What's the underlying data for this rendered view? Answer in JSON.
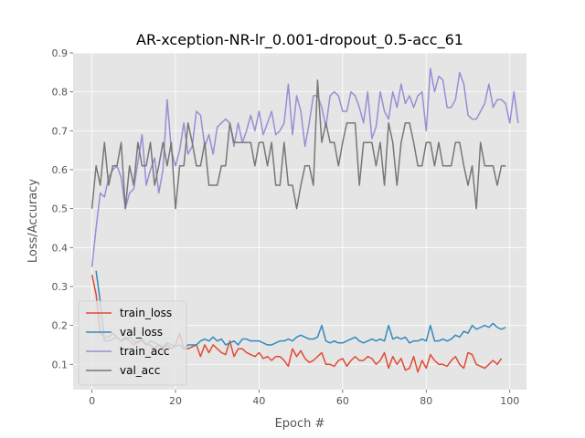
{
  "chart_data": {
    "type": "line",
    "title": "AR-xception-NR-lr_0.001-dropout_0.5-acc_61",
    "xlabel": "Epoch #",
    "ylabel": "Loss/Accuracy",
    "xlim": [
      -4.5,
      104
    ],
    "ylim": [
      0.035,
      0.9
    ],
    "xticks": [
      0,
      20,
      40,
      60,
      80,
      100
    ],
    "yticks": [
      0.1,
      0.2,
      0.3,
      0.4,
      0.5,
      0.6,
      0.7,
      0.8,
      0.9
    ],
    "xtick_labels": [
      "0",
      "20",
      "40",
      "60",
      "80",
      "100"
    ],
    "ytick_labels": [
      "0.1",
      "0.2",
      "0.3",
      "0.4",
      "0.5",
      "0.6",
      "0.7",
      "0.8",
      "0.9"
    ],
    "grid": true,
    "background": "#E5E5E5",
    "legend_position": "lower-left",
    "series": [
      {
        "name": "train_loss",
        "color": "#E24A33",
        "values": [
          0.33,
          0.28,
          0.18,
          0.17,
          0.17,
          0.18,
          0.17,
          0.16,
          0.17,
          0.16,
          0.15,
          0.16,
          0.16,
          0.15,
          0.15,
          0.14,
          0.15,
          0.14,
          0.15,
          0.14,
          0.15,
          0.18,
          0.14,
          0.14,
          0.145,
          0.15,
          0.12,
          0.15,
          0.13,
          0.15,
          0.14,
          0.13,
          0.125,
          0.16,
          0.12,
          0.14,
          0.14,
          0.13,
          0.125,
          0.12,
          0.13,
          0.115,
          0.12,
          0.11,
          0.12,
          0.12,
          0.11,
          0.095,
          0.14,
          0.12,
          0.135,
          0.115,
          0.105,
          0.11,
          0.12,
          0.13,
          0.1,
          0.1,
          0.095,
          0.11,
          0.115,
          0.095,
          0.11,
          0.12,
          0.11,
          0.11,
          0.12,
          0.115,
          0.1,
          0.11,
          0.13,
          0.09,
          0.12,
          0.1,
          0.115,
          0.085,
          0.09,
          0.12,
          0.08,
          0.11,
          0.09,
          0.125,
          0.11,
          0.1,
          0.1,
          0.095,
          0.11,
          0.12,
          0.1,
          0.09,
          0.13,
          0.125,
          0.1,
          0.095,
          0.09,
          0.1,
          0.11,
          0.1,
          0.115
        ],
        "x_start": 0
      },
      {
        "name": "val_loss",
        "color": "#348ABD",
        "values": [
          0.34,
          0.26,
          0.16,
          0.16,
          0.165,
          0.17,
          0.16,
          0.165,
          0.17,
          0.16,
          0.155,
          0.165,
          0.15,
          0.16,
          0.155,
          0.15,
          0.145,
          0.155,
          0.15,
          0.145,
          0.15,
          0.14,
          0.15,
          0.15,
          0.15,
          0.16,
          0.165,
          0.16,
          0.17,
          0.16,
          0.165,
          0.15,
          0.155,
          0.16,
          0.15,
          0.165,
          0.165,
          0.16,
          0.16,
          0.16,
          0.155,
          0.15,
          0.15,
          0.155,
          0.16,
          0.16,
          0.165,
          0.16,
          0.17,
          0.175,
          0.17,
          0.165,
          0.165,
          0.17,
          0.2,
          0.16,
          0.155,
          0.16,
          0.155,
          0.155,
          0.16,
          0.165,
          0.17,
          0.16,
          0.155,
          0.16,
          0.165,
          0.16,
          0.165,
          0.16,
          0.2,
          0.165,
          0.17,
          0.165,
          0.17,
          0.155,
          0.16,
          0.16,
          0.165,
          0.16,
          0.2,
          0.16,
          0.16,
          0.165,
          0.16,
          0.165,
          0.175,
          0.17,
          0.185,
          0.18,
          0.2,
          0.19,
          0.195,
          0.2,
          0.195,
          0.205,
          0.195,
          0.19,
          0.195
        ],
        "x_start": 1
      },
      {
        "name": "train_acc",
        "color": "#988ED5",
        "values": [
          0.35,
          0.45,
          0.54,
          0.53,
          0.58,
          0.6,
          0.61,
          0.58,
          0.5,
          0.54,
          0.55,
          0.62,
          0.69,
          0.56,
          0.6,
          0.63,
          0.54,
          0.6,
          0.78,
          0.65,
          0.61,
          0.65,
          0.72,
          0.64,
          0.66,
          0.75,
          0.74,
          0.66,
          0.69,
          0.64,
          0.71,
          0.72,
          0.73,
          0.72,
          0.66,
          0.72,
          0.67,
          0.7,
          0.74,
          0.7,
          0.75,
          0.69,
          0.72,
          0.75,
          0.69,
          0.7,
          0.72,
          0.82,
          0.69,
          0.79,
          0.75,
          0.66,
          0.72,
          0.79,
          0.79,
          0.76,
          0.71,
          0.79,
          0.8,
          0.79,
          0.75,
          0.75,
          0.8,
          0.79,
          0.76,
          0.72,
          0.8,
          0.68,
          0.71,
          0.8,
          0.75,
          0.73,
          0.8,
          0.76,
          0.82,
          0.77,
          0.79,
          0.76,
          0.79,
          0.8,
          0.7,
          0.86,
          0.8,
          0.84,
          0.83,
          0.76,
          0.76,
          0.78,
          0.85,
          0.82,
          0.74,
          0.73,
          0.73,
          0.75,
          0.77,
          0.82,
          0.76,
          0.78,
          0.78,
          0.77,
          0.72,
          0.8,
          0.72
        ],
        "x_start": 0
      },
      {
        "name": "val_acc",
        "color": "#777777",
        "values": [
          0.5,
          0.61,
          0.56,
          0.67,
          0.56,
          0.61,
          0.61,
          0.67,
          0.5,
          0.61,
          0.56,
          0.67,
          0.61,
          0.61,
          0.67,
          0.56,
          0.61,
          0.67,
          0.61,
          0.67,
          0.5,
          0.61,
          0.61,
          0.72,
          0.67,
          0.61,
          0.61,
          0.67,
          0.56,
          0.56,
          0.56,
          0.61,
          0.61,
          0.72,
          0.67,
          0.67,
          0.67,
          0.67,
          0.67,
          0.61,
          0.67,
          0.67,
          0.61,
          0.67,
          0.56,
          0.56,
          0.67,
          0.56,
          0.56,
          0.5,
          0.56,
          0.61,
          0.61,
          0.56,
          0.83,
          0.67,
          0.72,
          0.67,
          0.67,
          0.61,
          0.67,
          0.72,
          0.72,
          0.72,
          0.56,
          0.67,
          0.67,
          0.67,
          0.61,
          0.67,
          0.56,
          0.72,
          0.67,
          0.56,
          0.67,
          0.72,
          0.72,
          0.67,
          0.61,
          0.61,
          0.67,
          0.67,
          0.61,
          0.67,
          0.61,
          0.61,
          0.61,
          0.67,
          0.67,
          0.61,
          0.56,
          0.61,
          0.5,
          0.67,
          0.61,
          0.61,
          0.61,
          0.56,
          0.61,
          0.61
        ],
        "x_start": 0
      }
    ]
  }
}
